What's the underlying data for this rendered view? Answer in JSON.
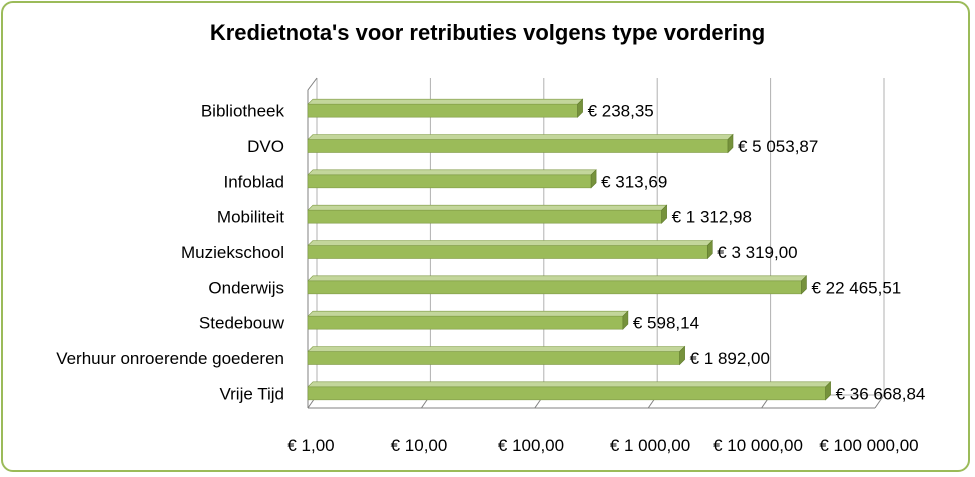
{
  "chart_data": {
    "type": "bar",
    "orientation": "horizontal",
    "title": "Kredietnota's voor retributies volgens type vordering",
    "xscale": "log",
    "xlim": [
      1,
      100000
    ],
    "grid": true,
    "categories": [
      "Bibliotheek",
      "DVO",
      "Infoblad",
      "Mobiliteit",
      "Muziekschool",
      "Onderwijs",
      "Stedebouw",
      "Verhuur onroerende goederen",
      "Vrije Tijd"
    ],
    "values": [
      238.35,
      5053.87,
      313.69,
      1312.98,
      3319.0,
      22465.51,
      598.14,
      1892.0,
      36668.84
    ],
    "data_labels": [
      "€  238,35",
      "€ 5 053,87",
      "€  313,69",
      "€ 1 312,98",
      "€ 3 319,00",
      "€ 22 465,51",
      "€  598,14",
      "€ 1 892,00",
      "€ 36 668,84"
    ],
    "x_ticks": [
      1,
      10,
      100,
      1000,
      10000,
      100000
    ],
    "x_tick_labels": [
      "€  1,00",
      "€  10,00",
      "€  100,00",
      "€ 1 000,00",
      "€ 10 000,00",
      "€ 100 000,00"
    ],
    "bar_color": "#9bbb59",
    "border_color": "#9bbb59"
  }
}
